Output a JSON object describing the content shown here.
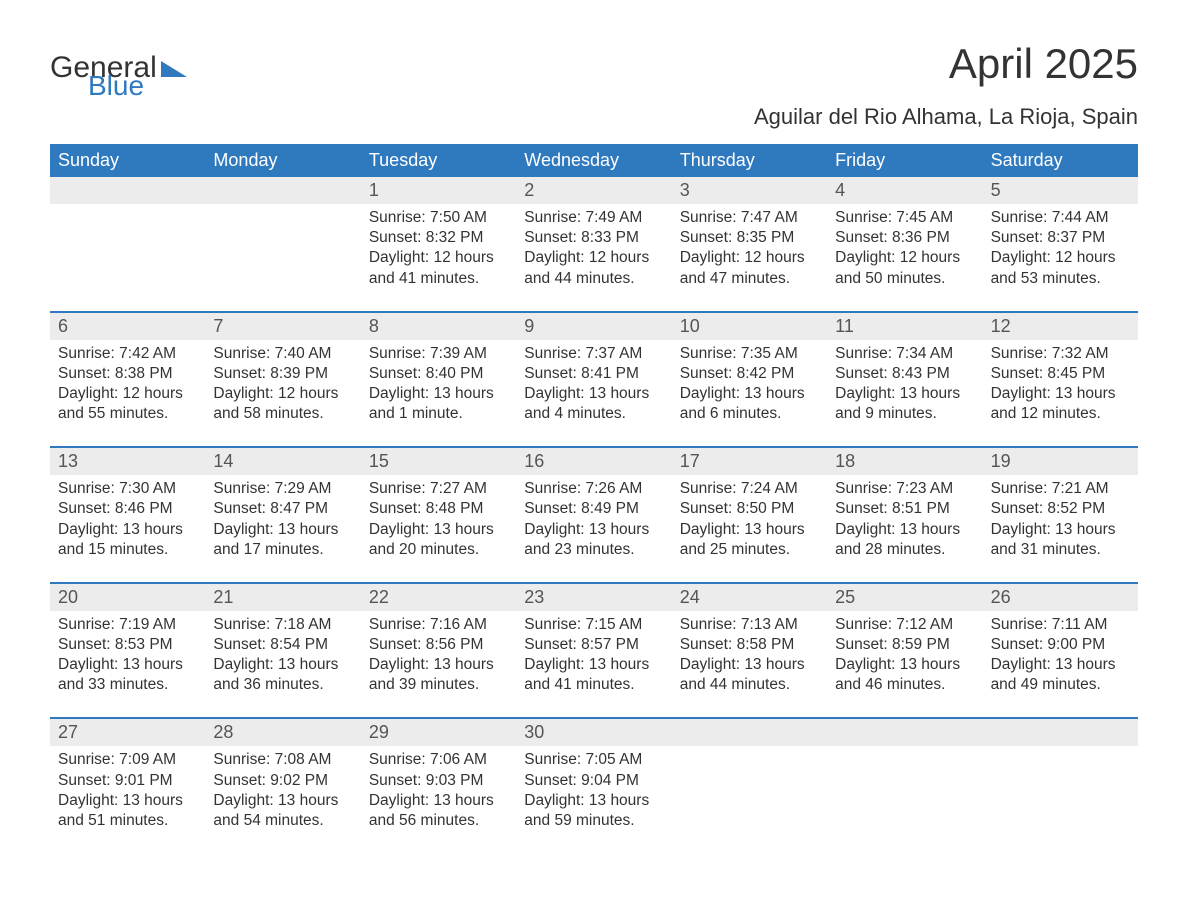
{
  "brand": {
    "part1": "General",
    "part2": "Blue",
    "logo_color": "#2f79bf"
  },
  "title": "April 2025",
  "subtitle": "Aguilar del Rio Alhama, La Rioja, Spain",
  "colors": {
    "header_bg": "#2f79bf",
    "header_text": "#ffffff",
    "daynum_bg": "#ececec",
    "text": "#333333",
    "background": "#ffffff"
  },
  "fonts": {
    "title_size_pt": 32,
    "subtitle_size_pt": 17,
    "header_size_pt": 14,
    "body_size_pt": 12
  },
  "day_names": [
    "Sunday",
    "Monday",
    "Tuesday",
    "Wednesday",
    "Thursday",
    "Friday",
    "Saturday"
  ],
  "weeks": [
    [
      {
        "n": "",
        "sunrise": "",
        "sunset": "",
        "daylight": ""
      },
      {
        "n": "",
        "sunrise": "",
        "sunset": "",
        "daylight": ""
      },
      {
        "n": "1",
        "sunrise": "7:50 AM",
        "sunset": "8:32 PM",
        "daylight": "12 hours and 41 minutes."
      },
      {
        "n": "2",
        "sunrise": "7:49 AM",
        "sunset": "8:33 PM",
        "daylight": "12 hours and 44 minutes."
      },
      {
        "n": "3",
        "sunrise": "7:47 AM",
        "sunset": "8:35 PM",
        "daylight": "12 hours and 47 minutes."
      },
      {
        "n": "4",
        "sunrise": "7:45 AM",
        "sunset": "8:36 PM",
        "daylight": "12 hours and 50 minutes."
      },
      {
        "n": "5",
        "sunrise": "7:44 AM",
        "sunset": "8:37 PM",
        "daylight": "12 hours and 53 minutes."
      }
    ],
    [
      {
        "n": "6",
        "sunrise": "7:42 AM",
        "sunset": "8:38 PM",
        "daylight": "12 hours and 55 minutes."
      },
      {
        "n": "7",
        "sunrise": "7:40 AM",
        "sunset": "8:39 PM",
        "daylight": "12 hours and 58 minutes."
      },
      {
        "n": "8",
        "sunrise": "7:39 AM",
        "sunset": "8:40 PM",
        "daylight": "13 hours and 1 minute."
      },
      {
        "n": "9",
        "sunrise": "7:37 AM",
        "sunset": "8:41 PM",
        "daylight": "13 hours and 4 minutes."
      },
      {
        "n": "10",
        "sunrise": "7:35 AM",
        "sunset": "8:42 PM",
        "daylight": "13 hours and 6 minutes."
      },
      {
        "n": "11",
        "sunrise": "7:34 AM",
        "sunset": "8:43 PM",
        "daylight": "13 hours and 9 minutes."
      },
      {
        "n": "12",
        "sunrise": "7:32 AM",
        "sunset": "8:45 PM",
        "daylight": "13 hours and 12 minutes."
      }
    ],
    [
      {
        "n": "13",
        "sunrise": "7:30 AM",
        "sunset": "8:46 PM",
        "daylight": "13 hours and 15 minutes."
      },
      {
        "n": "14",
        "sunrise": "7:29 AM",
        "sunset": "8:47 PM",
        "daylight": "13 hours and 17 minutes."
      },
      {
        "n": "15",
        "sunrise": "7:27 AM",
        "sunset": "8:48 PM",
        "daylight": "13 hours and 20 minutes."
      },
      {
        "n": "16",
        "sunrise": "7:26 AM",
        "sunset": "8:49 PM",
        "daylight": "13 hours and 23 minutes."
      },
      {
        "n": "17",
        "sunrise": "7:24 AM",
        "sunset": "8:50 PM",
        "daylight": "13 hours and 25 minutes."
      },
      {
        "n": "18",
        "sunrise": "7:23 AM",
        "sunset": "8:51 PM",
        "daylight": "13 hours and 28 minutes."
      },
      {
        "n": "19",
        "sunrise": "7:21 AM",
        "sunset": "8:52 PM",
        "daylight": "13 hours and 31 minutes."
      }
    ],
    [
      {
        "n": "20",
        "sunrise": "7:19 AM",
        "sunset": "8:53 PM",
        "daylight": "13 hours and 33 minutes."
      },
      {
        "n": "21",
        "sunrise": "7:18 AM",
        "sunset": "8:54 PM",
        "daylight": "13 hours and 36 minutes."
      },
      {
        "n": "22",
        "sunrise": "7:16 AM",
        "sunset": "8:56 PM",
        "daylight": "13 hours and 39 minutes."
      },
      {
        "n": "23",
        "sunrise": "7:15 AM",
        "sunset": "8:57 PM",
        "daylight": "13 hours and 41 minutes."
      },
      {
        "n": "24",
        "sunrise": "7:13 AM",
        "sunset": "8:58 PM",
        "daylight": "13 hours and 44 minutes."
      },
      {
        "n": "25",
        "sunrise": "7:12 AM",
        "sunset": "8:59 PM",
        "daylight": "13 hours and 46 minutes."
      },
      {
        "n": "26",
        "sunrise": "7:11 AM",
        "sunset": "9:00 PM",
        "daylight": "13 hours and 49 minutes."
      }
    ],
    [
      {
        "n": "27",
        "sunrise": "7:09 AM",
        "sunset": "9:01 PM",
        "daylight": "13 hours and 51 minutes."
      },
      {
        "n": "28",
        "sunrise": "7:08 AM",
        "sunset": "9:02 PM",
        "daylight": "13 hours and 54 minutes."
      },
      {
        "n": "29",
        "sunrise": "7:06 AM",
        "sunset": "9:03 PM",
        "daylight": "13 hours and 56 minutes."
      },
      {
        "n": "30",
        "sunrise": "7:05 AM",
        "sunset": "9:04 PM",
        "daylight": "13 hours and 59 minutes."
      },
      {
        "n": "",
        "sunrise": "",
        "sunset": "",
        "daylight": ""
      },
      {
        "n": "",
        "sunrise": "",
        "sunset": "",
        "daylight": ""
      },
      {
        "n": "",
        "sunrise": "",
        "sunset": "",
        "daylight": ""
      }
    ]
  ],
  "labels": {
    "sunrise": "Sunrise: ",
    "sunset": "Sunset: ",
    "daylight": "Daylight: "
  }
}
